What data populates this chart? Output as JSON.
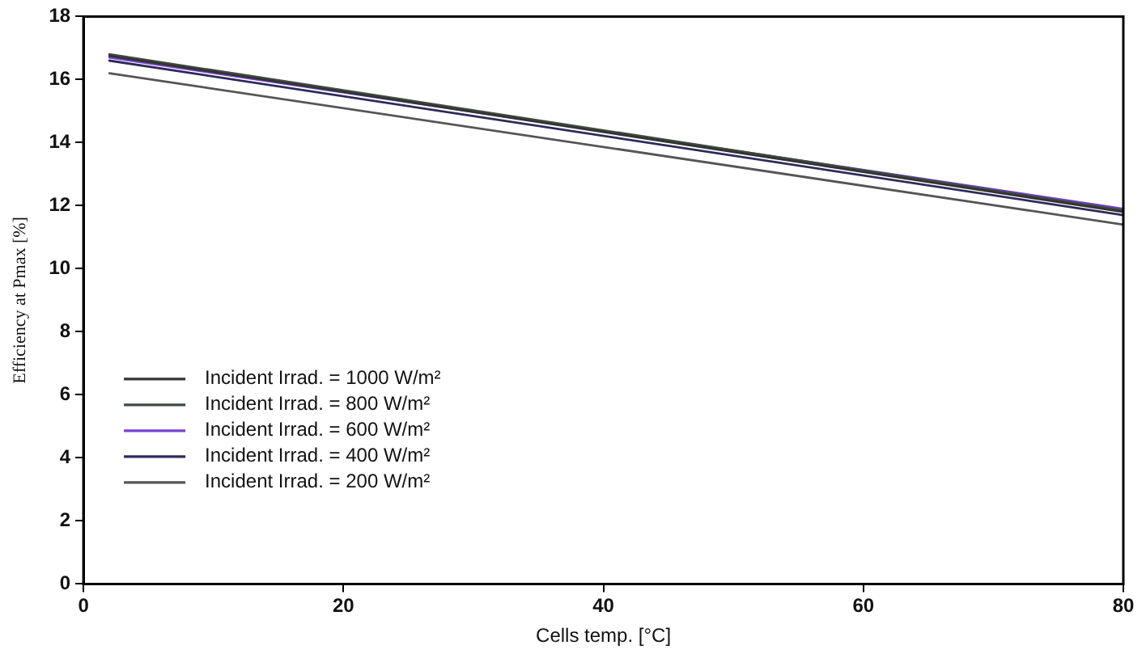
{
  "chart_data": {
    "type": "line",
    "xlabel": "Cells temp. [°C]",
    "ylabel": "Efficiency at Pmax [%]",
    "xlim": [
      0,
      80
    ],
    "xticks": [
      0,
      20,
      40,
      60,
      80
    ],
    "ylim": [
      0,
      18
    ],
    "yticks": [
      0,
      2,
      4,
      6,
      8,
      10,
      12,
      14,
      16,
      18
    ],
    "legend": "center left",
    "marker": "none",
    "line_style": "solid",
    "x": [
      2,
      80
    ],
    "series": [
      {
        "name": "Incident Irrad. = 1000 W/m²",
        "color": "#333333",
        "values": [
          16.75,
          11.8
        ]
      },
      {
        "name": "Incident Irrad. = 800 W/m²",
        "color": "#3d4d40",
        "values": [
          16.8,
          11.85
        ]
      },
      {
        "name": "Incident Irrad. = 600 W/m²",
        "color": "#7b3fd6",
        "values": [
          16.7,
          11.9
        ]
      },
      {
        "name": "Incident Irrad. = 400 W/m²",
        "color": "#2b2a5a",
        "values": [
          16.6,
          11.7
        ]
      },
      {
        "name": "Incident Irrad. = 200 W/m²",
        "color": "#555555",
        "values": [
          16.2,
          11.4
        ]
      }
    ]
  }
}
